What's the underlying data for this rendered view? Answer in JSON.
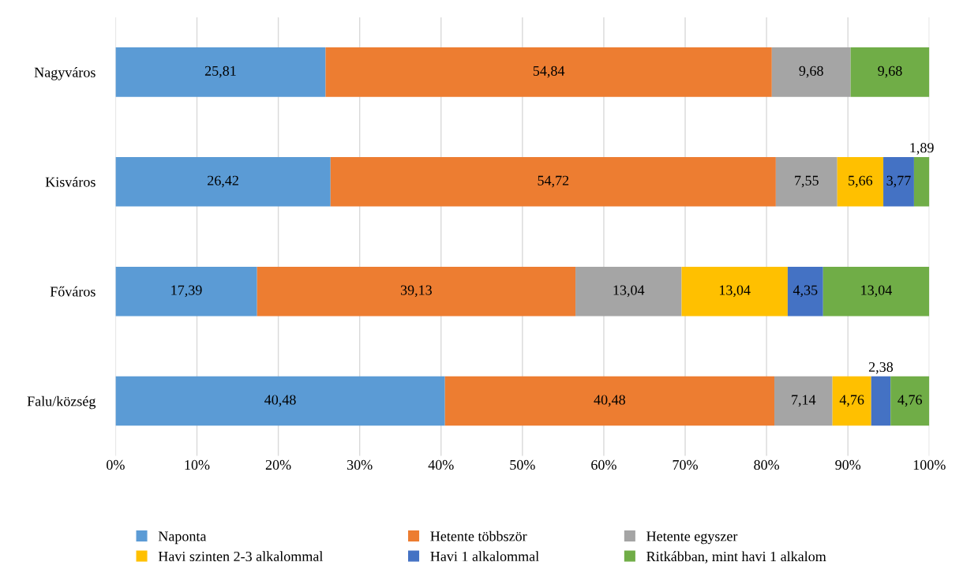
{
  "chart_data": {
    "type": "bar",
    "orientation": "horizontal",
    "stacked": true,
    "categories": [
      "Nagyváros",
      "Kisváros",
      "Főváros",
      "Falu/község"
    ],
    "series": [
      {
        "name": "Naponta",
        "color": "#5b9bd5",
        "values": [
          25.81,
          26.42,
          17.39,
          40.48
        ],
        "value_labels": [
          "25,81",
          "26,42",
          "17,39",
          "40,48"
        ]
      },
      {
        "name": "Hetente többször",
        "color": "#ed7d31",
        "values": [
          54.84,
          54.72,
          39.13,
          40.48
        ],
        "value_labels": [
          "54,84",
          "54,72",
          "39,13",
          "40,48"
        ]
      },
      {
        "name": "Hetente egyszer",
        "color": "#a5a5a5",
        "values": [
          9.68,
          7.55,
          13.04,
          7.14
        ],
        "value_labels": [
          "9,68",
          "7,55",
          "13,04",
          "7,14"
        ]
      },
      {
        "name": "Havi szinten 2-3 alkalommal",
        "color": "#ffc000",
        "values": [
          null,
          5.66,
          13.04,
          4.76
        ],
        "value_labels": [
          null,
          "5,66",
          "13,04",
          "4,76"
        ]
      },
      {
        "name": "Havi 1 alkalommal",
        "color": "#4472c4",
        "values": [
          null,
          3.77,
          4.35,
          2.38
        ],
        "value_labels": [
          null,
          "3,77",
          "4,35",
          "2,38"
        ]
      },
      {
        "name": "Ritkábban, mint havi 1 alkalom",
        "color": "#70ad47",
        "values": [
          9.68,
          1.89,
          13.04,
          4.76
        ],
        "value_labels": [
          "9,68",
          "1,89",
          "13,04",
          "4,76"
        ]
      }
    ],
    "xlim": [
      0,
      100
    ],
    "xticks": [
      {
        "value": 0,
        "label": "0%"
      },
      {
        "value": 10,
        "label": "10%"
      },
      {
        "value": 20,
        "label": "20%"
      },
      {
        "value": 30,
        "label": "30%"
      },
      {
        "value": 40,
        "label": "40%"
      },
      {
        "value": 50,
        "label": "50%"
      },
      {
        "value": 60,
        "label": "60%"
      },
      {
        "value": 70,
        "label": "70%"
      },
      {
        "value": 80,
        "label": "80%"
      },
      {
        "value": 90,
        "label": "90%"
      },
      {
        "value": 100,
        "label": "100%"
      }
    ],
    "grid": "x",
    "legend": "bottom"
  }
}
